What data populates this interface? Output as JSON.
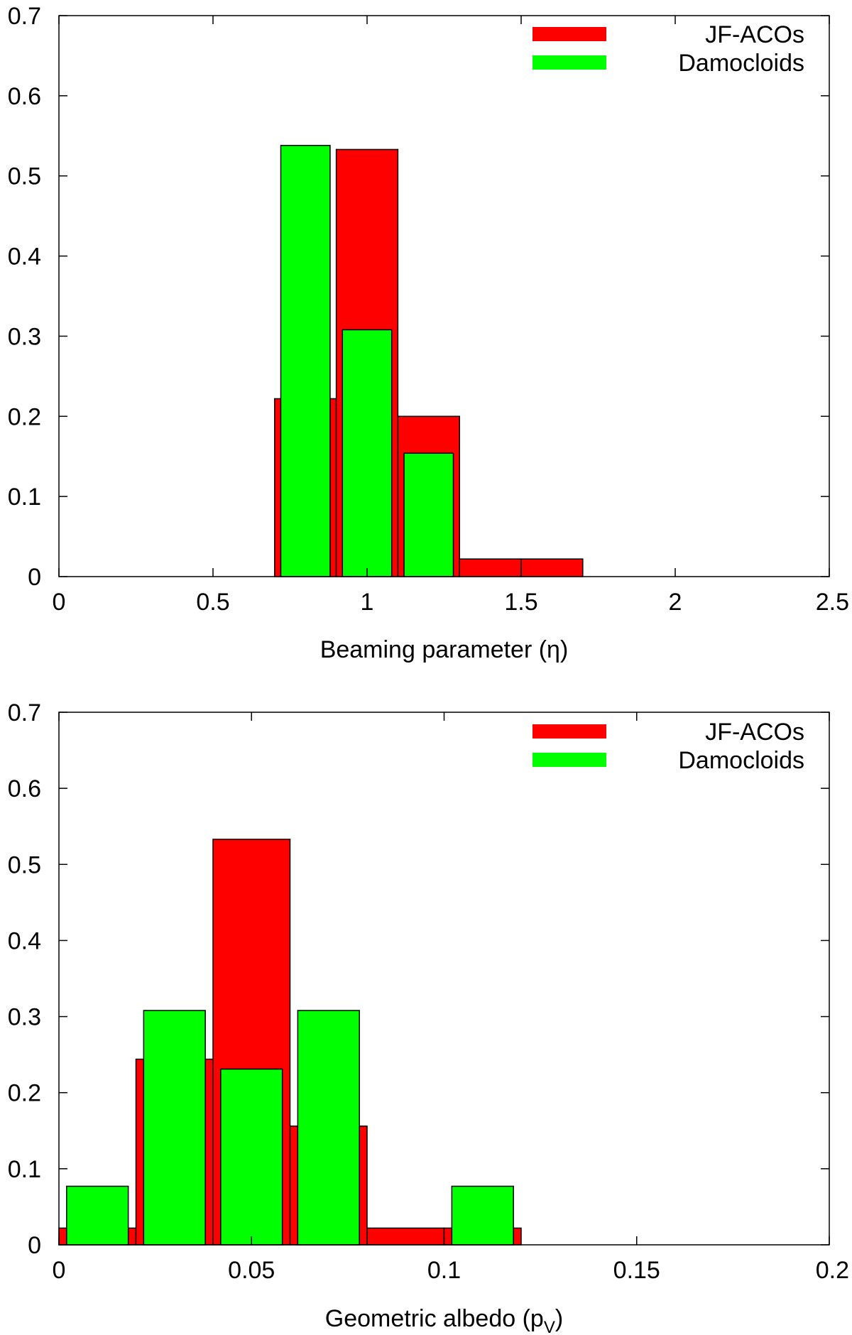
{
  "chart_data": [
    {
      "type": "bar",
      "xlabel": "Beaming parameter (η)",
      "ylabel": "",
      "xlim": [
        0,
        2.5
      ],
      "ylim": [
        0,
        0.7
      ],
      "xticks": [
        "0",
        "0.5",
        "1",
        "1.5",
        "2",
        "2.5"
      ],
      "yticks": [
        "0",
        "0.1",
        "0.2",
        "0.3",
        "0.4",
        "0.5",
        "0.6",
        "0.7"
      ],
      "grid": false,
      "legend_position": "top-right",
      "series": [
        {
          "name": "JF-ACOs",
          "color": "#ff0000",
          "bins": [
            {
              "x0": 0.7,
              "x1": 0.9,
              "value": 0.222
            },
            {
              "x0": 0.9,
              "x1": 1.1,
              "value": 0.533
            },
            {
              "x0": 1.1,
              "x1": 1.3,
              "value": 0.2
            },
            {
              "x0": 1.3,
              "x1": 1.5,
              "value": 0.022
            },
            {
              "x0": 1.5,
              "x1": 1.7,
              "value": 0.022
            }
          ]
        },
        {
          "name": "Damocloids",
          "color": "#00ff00",
          "bins": [
            {
              "x0": 0.72,
              "x1": 0.88,
              "value": 0.538
            },
            {
              "x0": 0.92,
              "x1": 1.08,
              "value": 0.308
            },
            {
              "x0": 1.12,
              "x1": 1.28,
              "value": 0.154
            }
          ]
        }
      ]
    },
    {
      "type": "bar",
      "xlabel": "Geometric albedo (pV)",
      "xlabel_main": "Geometric albedo (p",
      "xlabel_sub": "V",
      "xlabel_close": ")",
      "ylabel": "",
      "xlim": [
        0,
        0.2
      ],
      "ylim": [
        0,
        0.7
      ],
      "xticks": [
        "0",
        "0.05",
        "0.1",
        "0.15",
        "0.2"
      ],
      "yticks": [
        "0",
        "0.1",
        "0.2",
        "0.3",
        "0.4",
        "0.5",
        "0.6",
        "0.7"
      ],
      "grid": false,
      "legend_position": "top-right",
      "series": [
        {
          "name": "JF-ACOs",
          "color": "#ff0000",
          "bins": [
            {
              "x0": 0.0,
              "x1": 0.02,
              "value": 0.022
            },
            {
              "x0": 0.02,
              "x1": 0.04,
              "value": 0.244
            },
            {
              "x0": 0.04,
              "x1": 0.06,
              "value": 0.533
            },
            {
              "x0": 0.06,
              "x1": 0.08,
              "value": 0.156
            },
            {
              "x0": 0.08,
              "x1": 0.1,
              "value": 0.022
            },
            {
              "x0": 0.1,
              "x1": 0.12,
              "value": 0.022
            }
          ]
        },
        {
          "name": "Damocloids",
          "color": "#00ff00",
          "bins": [
            {
              "x0": 0.002,
              "x1": 0.018,
              "value": 0.077
            },
            {
              "x0": 0.022,
              "x1": 0.038,
              "value": 0.308
            },
            {
              "x0": 0.042,
              "x1": 0.058,
              "value": 0.231
            },
            {
              "x0": 0.062,
              "x1": 0.078,
              "value": 0.308
            },
            {
              "x0": 0.102,
              "x1": 0.118,
              "value": 0.077
            }
          ]
        }
      ]
    }
  ]
}
